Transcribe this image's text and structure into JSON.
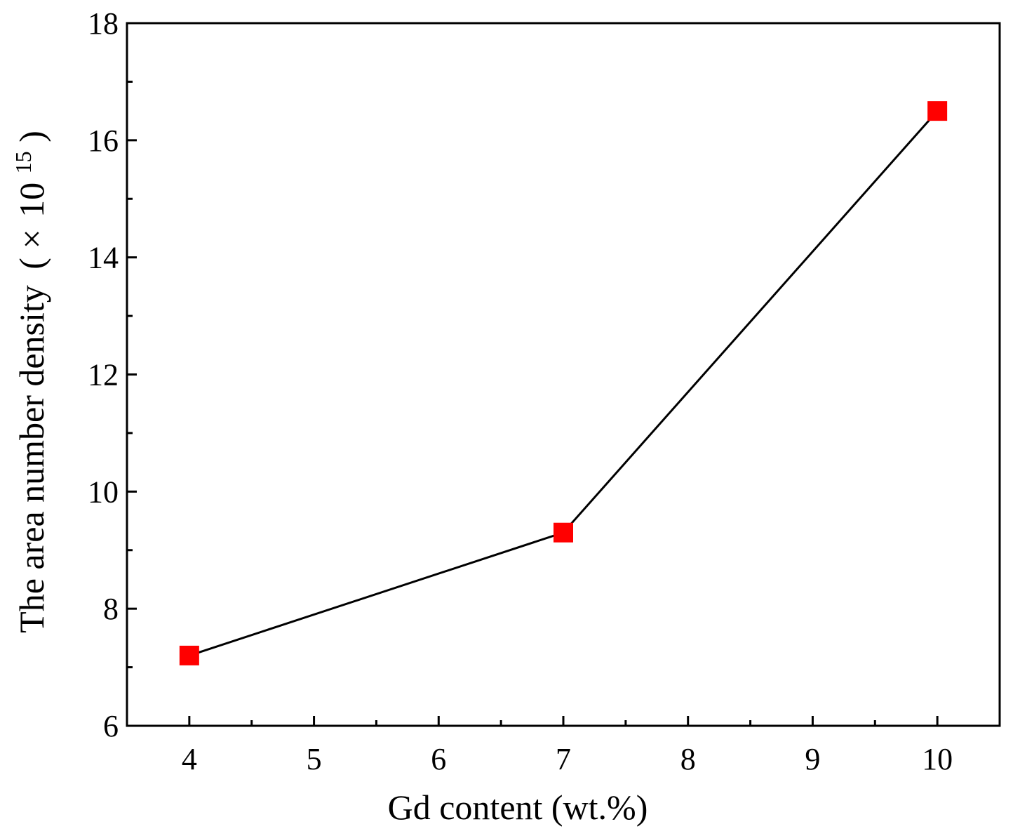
{
  "chart_data": {
    "type": "line",
    "title": "",
    "xlabel": "Gd content (wt.%)",
    "ylabel": "The area number density",
    "ylabel_unit": {
      "open": "(",
      "times": "×",
      "base": "10",
      "exponent": "15",
      "close": ")"
    },
    "xlim": [
      3.5,
      10.5
    ],
    "ylim": [
      6,
      18
    ],
    "xticks": [
      4,
      5,
      6,
      7,
      8,
      9,
      10
    ],
    "yticks": [
      6,
      8,
      10,
      12,
      14,
      16,
      18
    ],
    "grid": false,
    "series": [
      {
        "x": [
          4,
          7,
          10
        ],
        "y": [
          7.2,
          9.3,
          16.5
        ],
        "color": "#ff0000",
        "line_color": "#000000",
        "marker": "square"
      }
    ]
  }
}
